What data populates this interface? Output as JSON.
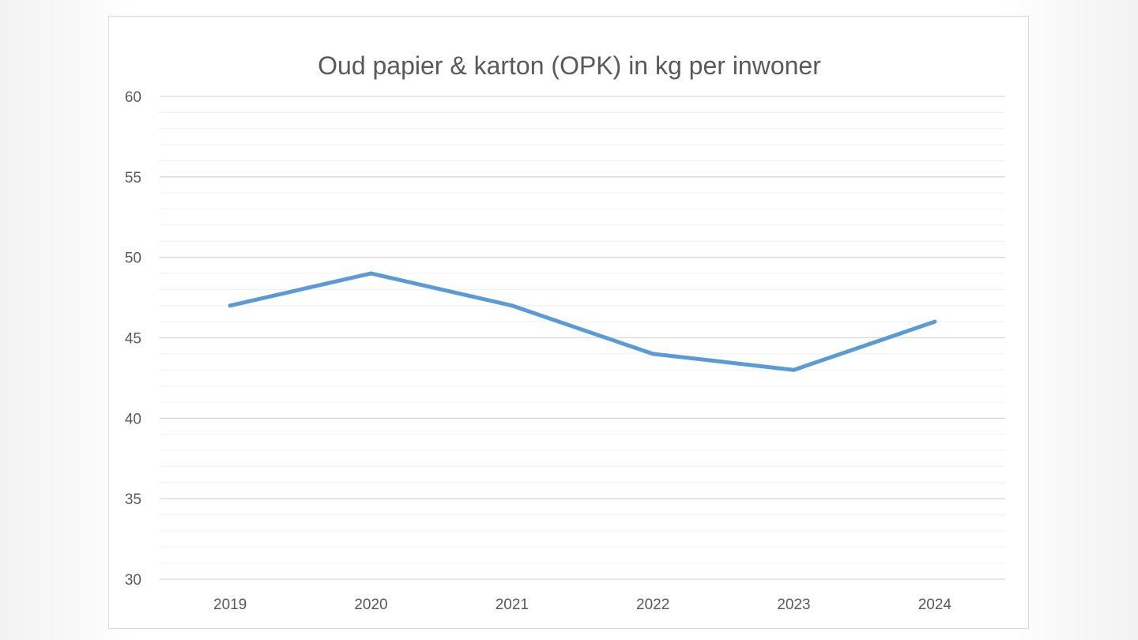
{
  "chart_data": {
    "type": "line",
    "title": "Oud papier & karton (OPK) in kg per inwoner",
    "xlabel": "",
    "ylabel": "",
    "categories": [
      "2019",
      "2020",
      "2021",
      "2022",
      "2023",
      "2024"
    ],
    "series": [
      {
        "values": [
          47,
          49,
          47,
          44,
          43,
          46
        ]
      }
    ],
    "ylim": [
      30,
      60
    ],
    "yticks": [
      30,
      35,
      40,
      45,
      50,
      55,
      60
    ],
    "grid": true,
    "minor_grid": true,
    "legend": "none",
    "line_color": "#5b9bd5"
  }
}
